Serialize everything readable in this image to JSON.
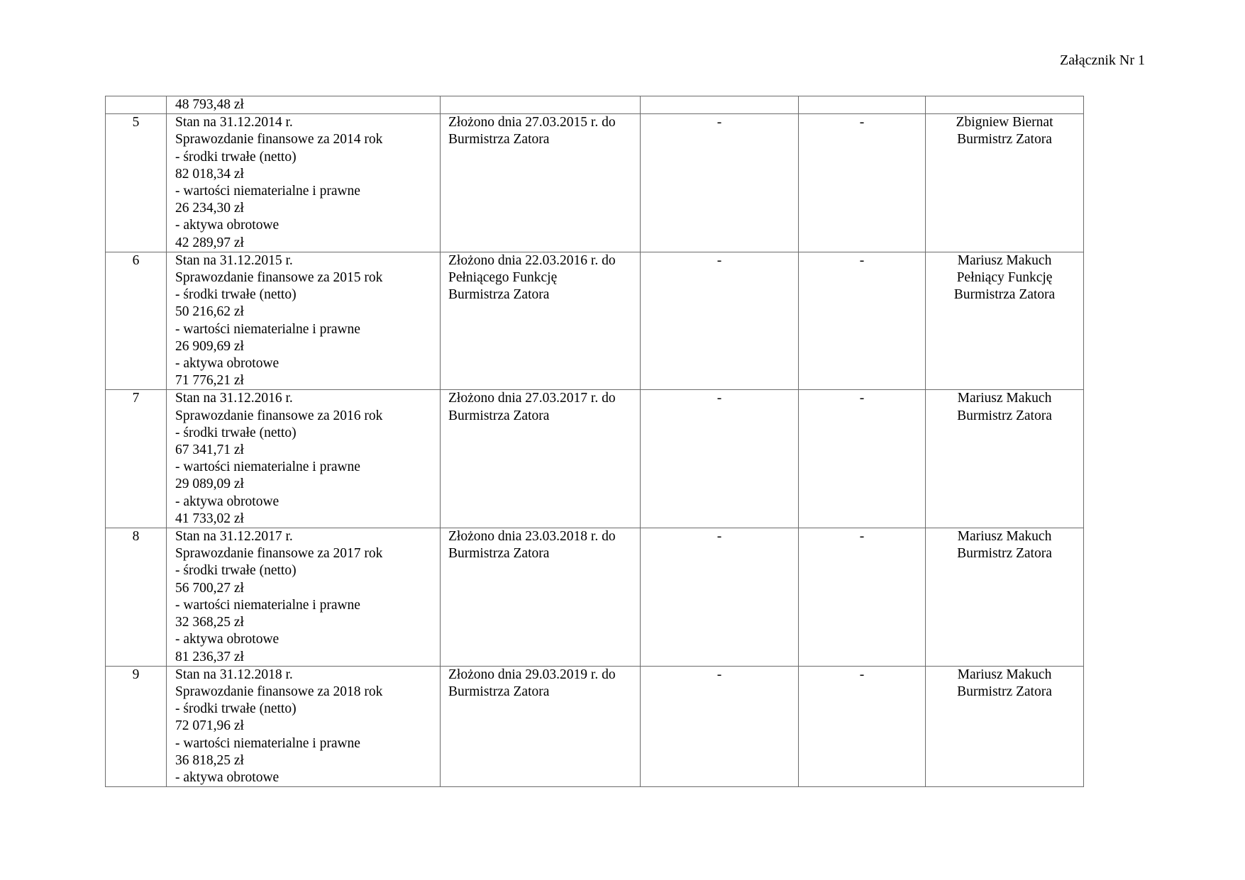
{
  "header": {
    "annex": "Załącznik Nr 1"
  },
  "table": {
    "continuation": {
      "lines": [
        "48 793,48 zł"
      ]
    },
    "rows": [
      {
        "no": "5",
        "details": [
          "Stan na 31.12.2014 r.",
          "Sprawozdanie finansowe za 2014 rok",
          "- środki trwałe (netto)",
          "82 018,34 zł",
          "- wartości niematerialne i prawne",
          "26 234,30 zł",
          "- aktywa obrotowe",
          "42 289,97 zł"
        ],
        "submitted": [
          "Złożono dnia 27.03.2015 r. do",
          "Burmistrza Zatora"
        ],
        "col4": "-",
        "col5": "-",
        "person": [
          "Zbigniew Biernat",
          "Burmistrz Zatora"
        ]
      },
      {
        "no": "6",
        "details": [
          "Stan na 31.12.2015 r.",
          "Sprawozdanie finansowe za 2015 rok",
          "- środki trwałe (netto)",
          "50 216,62 zł",
          "- wartości niematerialne i prawne",
          "26 909,69 zł",
          "- aktywa obrotowe",
          "71 776,21 zł"
        ],
        "submitted": [
          "Złożono dnia 22.03.2016 r. do",
          "Pełniącego Funkcję",
          "Burmistrza Zatora"
        ],
        "col4": "-",
        "col5": "-",
        "person": [
          "Mariusz Makuch",
          "Pełniący Funkcję",
          "Burmistrza Zatora"
        ]
      },
      {
        "no": "7",
        "details": [
          "Stan na 31.12.2016 r.",
          "Sprawozdanie finansowe za 2016 rok",
          "- środki trwałe (netto)",
          "67 341,71 zł",
          "- wartości niematerialne i prawne",
          "29 089,09 zł",
          "- aktywa obrotowe",
          "41 733,02 zł"
        ],
        "submitted": [
          "Złożono dnia 27.03.2017 r. do",
          "Burmistrza Zatora"
        ],
        "col4": "-",
        "col5": "-",
        "person": [
          "Mariusz Makuch",
          "Burmistrz Zatora"
        ]
      },
      {
        "no": "8",
        "details": [
          "Stan na 31.12.2017 r.",
          "Sprawozdanie finansowe za 2017 rok",
          "- środki trwałe (netto)",
          "56 700,27 zł",
          "- wartości niematerialne i prawne",
          "32 368,25 zł",
          "- aktywa obrotowe",
          "81 236,37 zł"
        ],
        "submitted": [
          "Złożono dnia 23.03.2018 r. do",
          "Burmistrza Zatora"
        ],
        "col4": "-",
        "col5": "-",
        "person": [
          "Mariusz Makuch",
          "Burmistrz Zatora"
        ]
      },
      {
        "no": "9",
        "details": [
          "Stan na 31.12.2018 r.",
          "Sprawozdanie finansowe za 2018 rok",
          "- środki trwałe (netto)",
          "72 071,96 zł",
          "- wartości niematerialne i prawne",
          "36 818,25 zł",
          "- aktywa obrotowe"
        ],
        "submitted": [
          "Złożono dnia 29.03.2019 r. do",
          "Burmistrza Zatora"
        ],
        "col4": "-",
        "col5": "-",
        "person": [
          "Mariusz Makuch",
          "Burmistrz Zatora"
        ]
      }
    ]
  }
}
